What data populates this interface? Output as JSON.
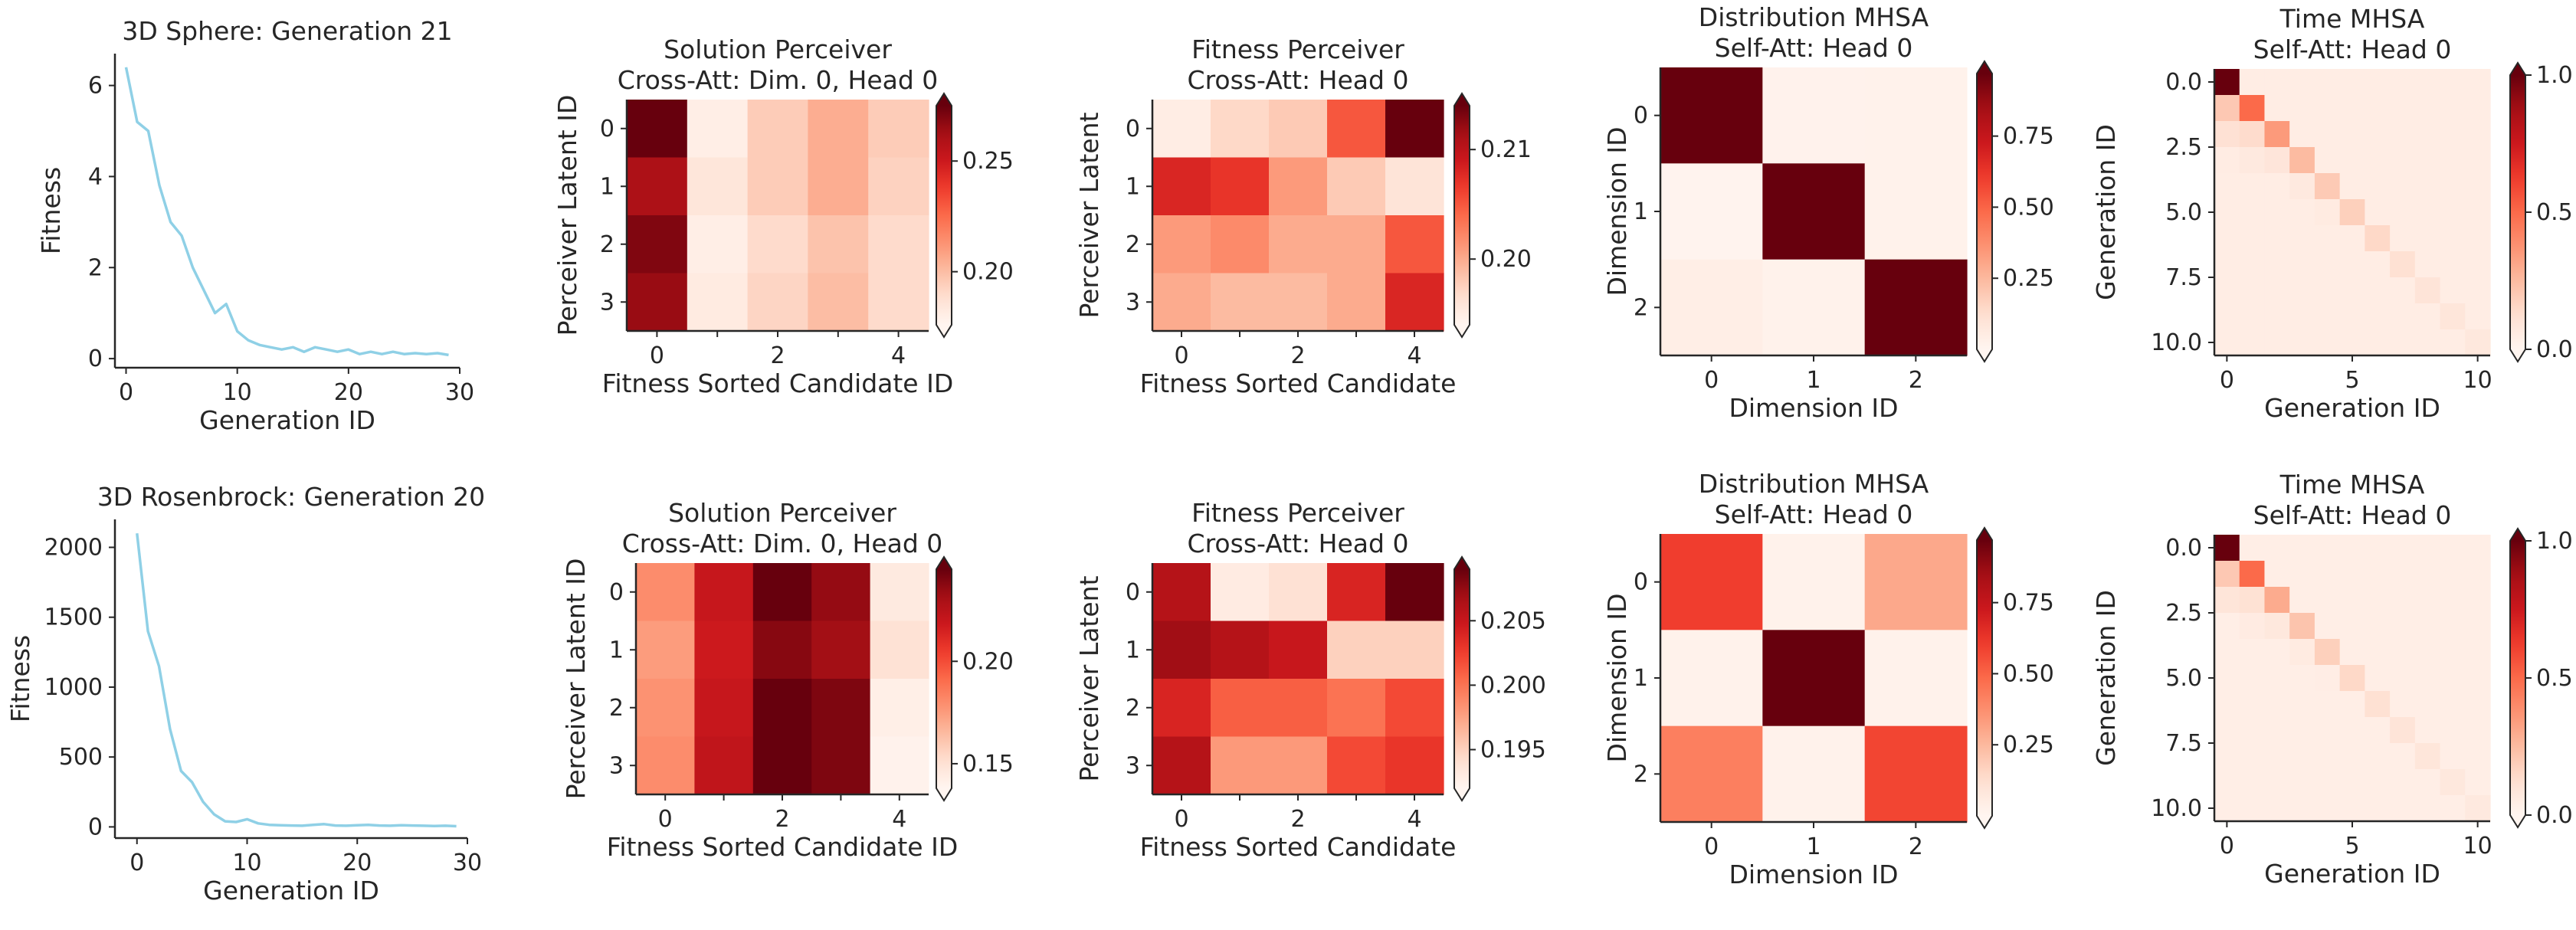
{
  "chart_data": [
    {
      "id": "sphere-fitness",
      "type": "line",
      "title": "3D Sphere: Generation 21",
      "xlabel": "Generation ID",
      "ylabel": "Fitness",
      "xlim": [
        -1,
        30
      ],
      "ylim": [
        -0.2,
        6.7
      ],
      "xticks": [
        "0",
        "10",
        "20",
        "30"
      ],
      "xtick_values": [
        0,
        10,
        20,
        30
      ],
      "yticks": [
        "0",
        "2",
        "4",
        "6"
      ],
      "ytick_values": [
        0,
        2,
        4,
        6
      ],
      "color": "#8fd0e6",
      "x": [
        0,
        1,
        2,
        3,
        4,
        5,
        6,
        7,
        8,
        9,
        10,
        11,
        12,
        13,
        14,
        15,
        16,
        17,
        18,
        19,
        20,
        21,
        22,
        23,
        24,
        25,
        26,
        27,
        28,
        29
      ],
      "values": [
        6.4,
        5.2,
        5.0,
        3.8,
        3.0,
        2.7,
        2.0,
        1.5,
        1.0,
        1.2,
        0.6,
        0.4,
        0.3,
        0.25,
        0.2,
        0.25,
        0.15,
        0.25,
        0.2,
        0.15,
        0.2,
        0.1,
        0.15,
        0.1,
        0.15,
        0.1,
        0.12,
        0.1,
        0.12,
        0.08
      ]
    },
    {
      "id": "sphere-solution",
      "type": "heatmap",
      "title": [
        "Solution Perceiver",
        "Cross-Att: Dim. 0, Head 0"
      ],
      "xlabel": "Fitness Sorted Candidate ID",
      "ylabel": "Perceiver Latent ID",
      "xticks": [
        "0",
        "",
        "2",
        "",
        "4"
      ],
      "yticks": [
        "0",
        "1",
        "2",
        "3"
      ],
      "cbar_ticks": [
        "0.20",
        "0.25"
      ],
      "cbar_tick_values": [
        0.2,
        0.25
      ],
      "vmin": 0.176,
      "vmax": 0.275,
      "values": [
        [
          0.275,
          0.18,
          0.195,
          0.205,
          0.195
        ],
        [
          0.26,
          0.185,
          0.195,
          0.205,
          0.193
        ],
        [
          0.27,
          0.18,
          0.19,
          0.198,
          0.19
        ],
        [
          0.265,
          0.182,
          0.192,
          0.2,
          0.19
        ]
      ]
    },
    {
      "id": "sphere-fitness-perceiver",
      "type": "heatmap",
      "title": [
        "Fitness Perceiver",
        "Cross-Att: Head 0"
      ],
      "xlabel": "Fitness Sorted Candidate",
      "ylabel": "Perceiver Latent",
      "xticks": [
        "0",
        "",
        "2",
        "",
        "4"
      ],
      "yticks": [
        "0",
        "1",
        "2",
        "3"
      ],
      "cbar_ticks": [
        "0.20",
        "0.21"
      ],
      "cbar_tick_values": [
        0.2,
        0.21
      ],
      "vmin": 0.194,
      "vmax": 0.214,
      "values": [
        [
          0.195,
          0.197,
          0.198,
          0.205,
          0.214
        ],
        [
          0.208,
          0.207,
          0.201,
          0.198,
          0.196
        ],
        [
          0.201,
          0.202,
          0.2,
          0.2,
          0.205
        ],
        [
          0.2,
          0.199,
          0.199,
          0.2,
          0.208
        ]
      ]
    },
    {
      "id": "sphere-distribution",
      "type": "heatmap",
      "title": [
        "Distribution MHSA",
        "Self-Att: Head 0"
      ],
      "xlabel": "Dimension ID",
      "ylabel": "Dimension ID",
      "xticks": [
        "0",
        "1",
        "2"
      ],
      "yticks": [
        "0",
        "1",
        "2"
      ],
      "cbar_ticks": [
        "0.25",
        "0.50",
        "0.75"
      ],
      "cbar_tick_values": [
        0.25,
        0.5,
        0.75
      ],
      "vmin": 0.0,
      "vmax": 0.97,
      "values": [
        [
          0.97,
          0.015,
          0.02
        ],
        [
          0.01,
          0.97,
          0.02
        ],
        [
          0.04,
          0.02,
          0.97
        ]
      ]
    },
    {
      "id": "sphere-time",
      "type": "heatmap",
      "title": [
        "Time MHSA",
        "Self-Att: Head 0"
      ],
      "xlabel": "Generation ID",
      "ylabel": "Generation ID",
      "xticks": [
        "0",
        "5",
        "10"
      ],
      "xtick_values": [
        0,
        5,
        10
      ],
      "yticks": [
        "0.0",
        "2.5",
        "5.0",
        "7.5",
        "10.0"
      ],
      "ytick_values": [
        0,
        2.5,
        5,
        7.5,
        10
      ],
      "cbar_ticks": [
        "0.0",
        "0.5",
        "1.0"
      ],
      "cbar_tick_values": [
        0.0,
        0.5,
        1.0
      ],
      "vmin": 0.0,
      "vmax": 1.0,
      "size": 11,
      "diag": [
        1.0,
        0.5,
        0.35,
        0.25,
        0.2,
        0.18,
        0.15,
        0.12,
        0.1,
        0.09,
        0.08
      ],
      "background": 0.05
    },
    {
      "id": "rosen-fitness",
      "type": "line",
      "title": "3D Rosenbrock: Generation 20",
      "xlabel": "Generation ID",
      "ylabel": "Fitness",
      "xlim": [
        -2,
        30
      ],
      "ylim": [
        -80,
        2200
      ],
      "xticks": [
        "0",
        "10",
        "20",
        "30"
      ],
      "xtick_values": [
        0,
        10,
        20,
        30
      ],
      "yticks": [
        "0",
        "500",
        "1000",
        "1500",
        "2000"
      ],
      "ytick_values": [
        0,
        500,
        1000,
        1500,
        2000
      ],
      "color": "#8fd0e6",
      "x": [
        0,
        1,
        2,
        3,
        4,
        5,
        6,
        7,
        8,
        9,
        10,
        11,
        12,
        13,
        14,
        15,
        16,
        17,
        18,
        19,
        20,
        21,
        22,
        23,
        24,
        25,
        26,
        27,
        28,
        29
      ],
      "values": [
        2100,
        1400,
        1150,
        700,
        400,
        320,
        180,
        90,
        40,
        35,
        55,
        25,
        15,
        12,
        10,
        8,
        15,
        20,
        10,
        8,
        12,
        15,
        10,
        8,
        12,
        10,
        8,
        6,
        8,
        5
      ]
    },
    {
      "id": "rosen-solution",
      "type": "heatmap",
      "title": [
        "Solution Perceiver",
        "Cross-Att: Dim. 0, Head 0"
      ],
      "xlabel": "Fitness Sorted Candidate ID",
      "ylabel": "Perceiver Latent ID",
      "xticks": [
        "0",
        "",
        "2",
        "",
        "4"
      ],
      "yticks": [
        "0",
        "1",
        "2",
        "3"
      ],
      "cbar_ticks": [
        "0.15",
        "0.20"
      ],
      "cbar_tick_values": [
        0.15,
        0.2
      ],
      "vmin": 0.138,
      "vmax": 0.245,
      "values": [
        [
          0.18,
          0.22,
          0.245,
          0.235,
          0.145
        ],
        [
          0.175,
          0.218,
          0.238,
          0.232,
          0.15
        ],
        [
          0.178,
          0.22,
          0.245,
          0.24,
          0.142
        ],
        [
          0.18,
          0.222,
          0.245,
          0.24,
          0.14
        ]
      ]
    },
    {
      "id": "rosen-fitness-perceiver",
      "type": "heatmap",
      "title": [
        "Fitness Perceiver",
        "Cross-Att: Head 0"
      ],
      "xlabel": "Fitness Sorted Candidate",
      "ylabel": "Perceiver Latent",
      "xticks": [
        "0",
        "",
        "2",
        "",
        "4"
      ],
      "yticks": [
        "0",
        "1",
        "2",
        "3"
      ],
      "cbar_ticks": [
        "0.195",
        "0.200",
        "0.205"
      ],
      "cbar_tick_values": [
        0.195,
        0.2,
        0.205
      ],
      "vmin": 0.192,
      "vmax": 0.209,
      "values": [
        [
          0.206,
          0.193,
          0.194,
          0.204,
          0.209
        ],
        [
          0.207,
          0.206,
          0.205,
          0.195,
          0.195
        ],
        [
          0.204,
          0.201,
          0.201,
          0.2,
          0.202
        ],
        [
          0.206,
          0.198,
          0.198,
          0.202,
          0.203
        ]
      ]
    },
    {
      "id": "rosen-distribution",
      "type": "heatmap",
      "title": [
        "Distribution MHSA",
        "Self-Att: Head 0"
      ],
      "xlabel": "Dimension ID",
      "ylabel": "Dimension ID",
      "xticks": [
        "0",
        "1",
        "2"
      ],
      "yticks": [
        "0",
        "1",
        "2"
      ],
      "cbar_ticks": [
        "0.25",
        "0.50",
        "0.75"
      ],
      "cbar_tick_values": [
        0.25,
        0.5,
        0.75
      ],
      "vmin": 0.0,
      "vmax": 0.97,
      "values": [
        [
          0.6,
          0.02,
          0.3
        ],
        [
          0.02,
          0.97,
          0.02
        ],
        [
          0.42,
          0.02,
          0.58
        ]
      ]
    },
    {
      "id": "rosen-time",
      "type": "heatmap",
      "title": [
        "Time MHSA",
        "Self-Att: Head 0"
      ],
      "xlabel": "Generation ID",
      "ylabel": "Generation ID",
      "xticks": [
        "0",
        "5",
        "10"
      ],
      "xtick_values": [
        0,
        5,
        10
      ],
      "yticks": [
        "0.0",
        "2.5",
        "5.0",
        "7.5",
        "10.0"
      ],
      "ytick_values": [
        0,
        2.5,
        5,
        7.5,
        10
      ],
      "cbar_ticks": [
        "0.0",
        "0.5",
        "1.0"
      ],
      "cbar_tick_values": [
        0.0,
        0.5,
        1.0
      ],
      "vmin": 0.0,
      "vmax": 1.0,
      "size": 11,
      "diag": [
        1.0,
        0.5,
        0.3,
        0.22,
        0.18,
        0.15,
        0.12,
        0.1,
        0.09,
        0.08,
        0.07
      ],
      "background": 0.04
    }
  ]
}
